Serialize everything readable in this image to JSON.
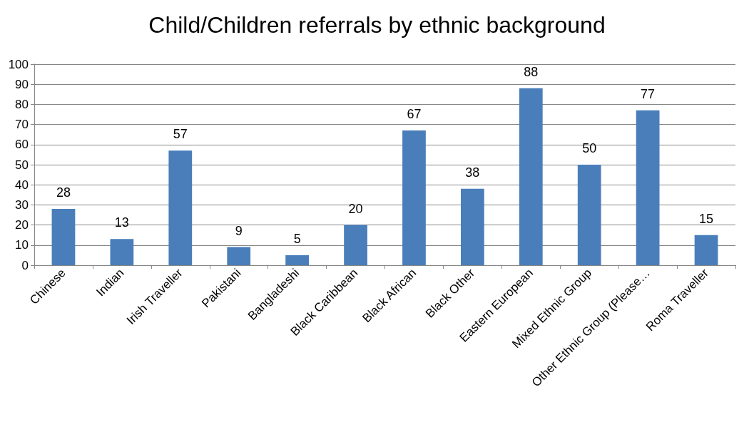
{
  "chart_data": {
    "type": "bar",
    "title": "Child/Children referrals by ethnic background",
    "categories": [
      "Chinese",
      "Indian",
      "Irish Traveller",
      "Pakistani",
      "Bangladeshi",
      "Black Caribbean",
      "Black African",
      "Black Other",
      "Eastern European",
      "Mixed Ethnic Group",
      "Other Ethnic Group (Please…",
      "Roma Traveller"
    ],
    "values": [
      28,
      13,
      57,
      9,
      5,
      20,
      67,
      38,
      88,
      50,
      77,
      15
    ],
    "color": "#4a7ebb",
    "ylim": [
      0,
      100
    ],
    "yticks": [
      0,
      10,
      20,
      30,
      40,
      50,
      60,
      70,
      80,
      90,
      100
    ],
    "grid": "y",
    "data_labels": true
  }
}
